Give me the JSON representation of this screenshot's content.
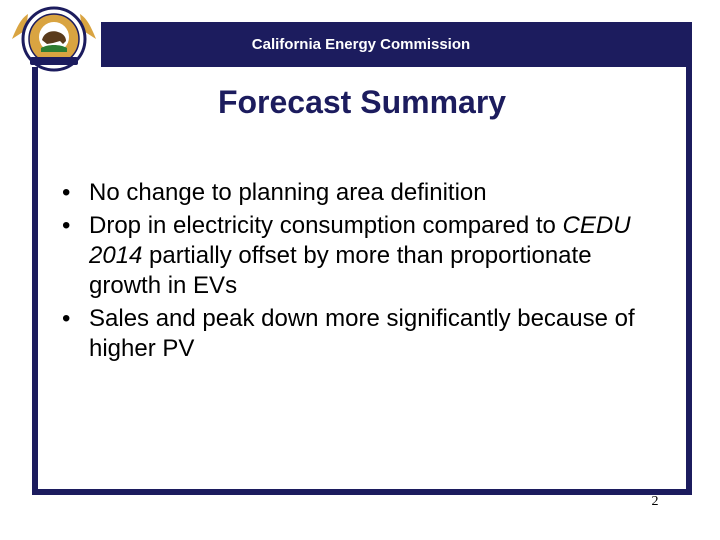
{
  "header": {
    "title": "California Energy Commission"
  },
  "slide": {
    "title": "Forecast Summary",
    "bullets": [
      {
        "text": "No change to planning area definition"
      },
      {
        "pre": "Drop in electricity consumption compared to ",
        "em": "CEDU 2014",
        "post": " partially offset by more than proportionate growth in EVs"
      },
      {
        "text": "Sales and peak down more significantly because of higher PV"
      }
    ],
    "page_number": "2"
  },
  "logo": {
    "icon": "cec-seal-icon",
    "colors": {
      "navy": "#1c1c5e",
      "gold": "#d9a441"
    }
  }
}
